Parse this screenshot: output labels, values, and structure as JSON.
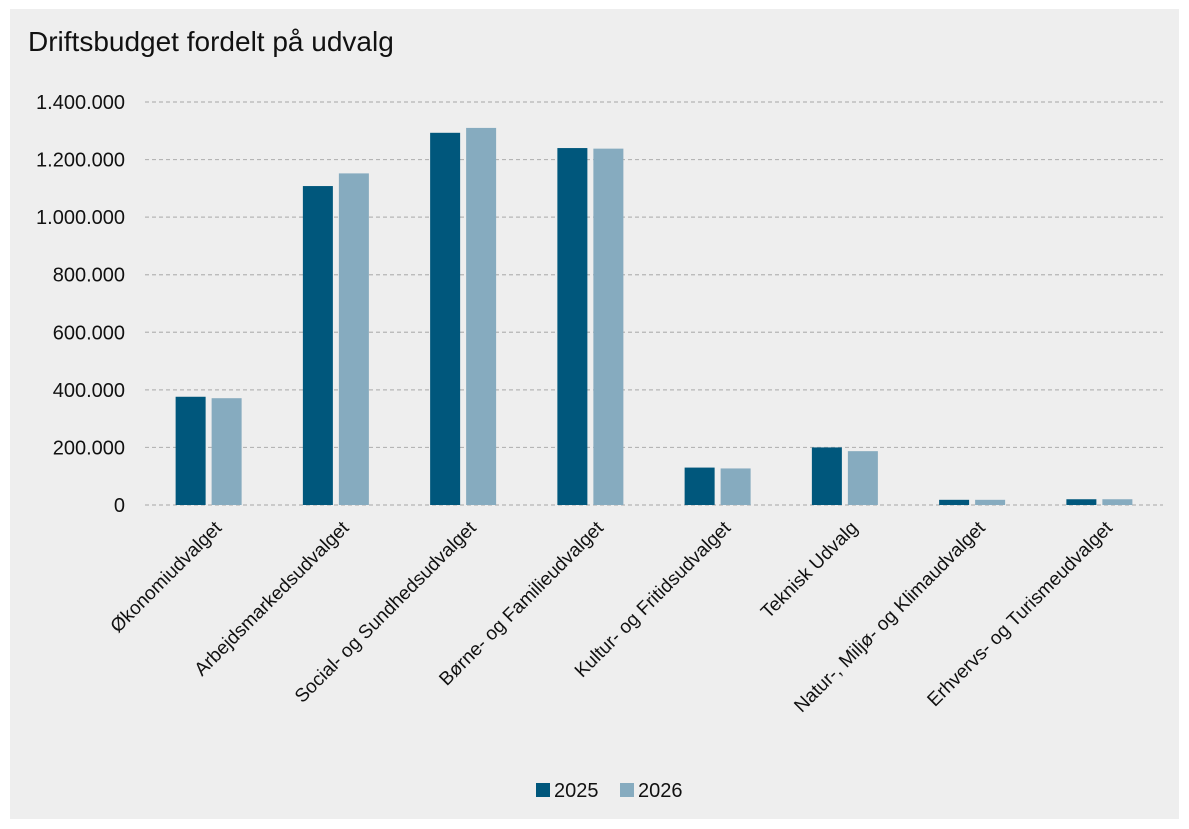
{
  "chart_data": {
    "type": "bar",
    "title": "Driftsbudget fordelt på udvalg",
    "xlabel": "",
    "ylabel": "",
    "ylim": [
      0,
      1400000
    ],
    "yticks": [
      0,
      200000,
      400000,
      600000,
      800000,
      1000000,
      1200000,
      1400000
    ],
    "ytick_labels": [
      "0",
      "200.000",
      "400.000",
      "600.000",
      "800.000",
      "1.000.000",
      "1.200.000",
      "1.400.000"
    ],
    "categories": [
      "Økonomiudvalget",
      "Arbejdsmarkedsudvalget",
      "Social- og Sundhedsudvalget",
      "Børne- og Familieudvalget",
      "Kultur- og Fritidsudvalget",
      "Teknisk Udvalg",
      "Natur-, Miljø- og Klimaudvalget",
      "Erhvervs- og Turismeudvalget"
    ],
    "series": [
      {
        "name": "2025",
        "color": "#00577c",
        "values": [
          376000,
          1108000,
          1293000,
          1240000,
          130000,
          200000,
          18000,
          20000
        ]
      },
      {
        "name": "2026",
        "color": "#86abbf",
        "values": [
          371000,
          1152000,
          1310000,
          1238000,
          127000,
          187000,
          18000,
          20000
        ]
      }
    ],
    "grid": true,
    "legend_position": "bottom-center"
  }
}
